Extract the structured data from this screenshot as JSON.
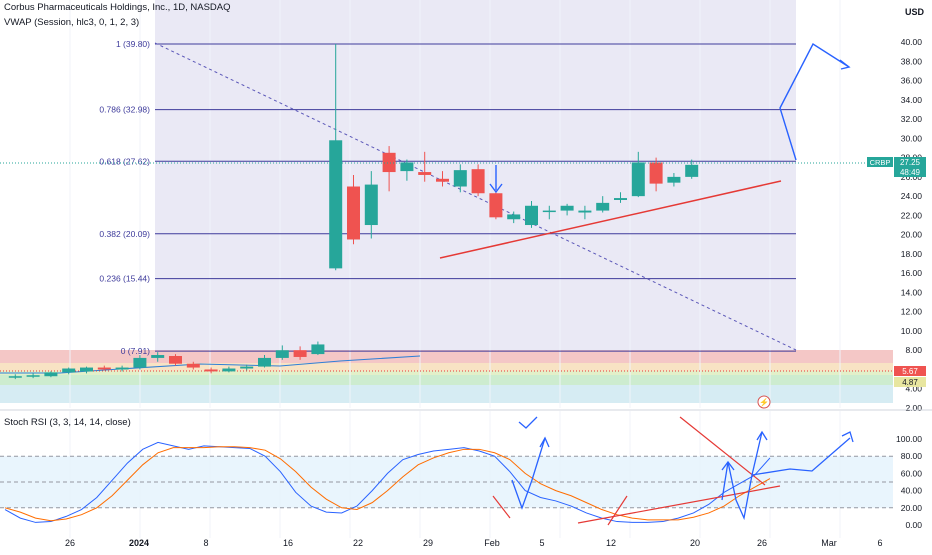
{
  "header": {
    "title_line": "Corbus Pharmaceuticals Holdings, Inc., 1D, NASDAQ",
    "vwap_line": "VWAP (Session, hlc3, 0, 1, 2, 3)",
    "currency": "USD"
  },
  "rsi_panel": {
    "title": "Stoch RSI (3, 3, 14, 14, close)",
    "yticks": [
      "100.00",
      "80.00",
      "60.00",
      "40.00",
      "20.00",
      "0.00"
    ]
  },
  "price_axis": {
    "ticks": [
      "40.00",
      "38.00",
      "36.00",
      "34.00",
      "32.00",
      "30.00",
      "28.00",
      "26.00",
      "24.00",
      "22.00",
      "20.00",
      "18.00",
      "16.00",
      "14.00",
      "12.00",
      "10.00",
      "8.00",
      "6.00",
      "4.00",
      "2.00"
    ]
  },
  "time_axis": {
    "labels": [
      "26",
      "2024",
      "8",
      "16",
      "22",
      "29",
      "Feb",
      "5",
      "12",
      "20",
      "26",
      "Mar",
      "6"
    ]
  },
  "badges": {
    "ticker": "CRBP",
    "price": "27.25",
    "countdown": "48:49",
    "vwap_value": "5.67",
    "band_value": "4.87"
  },
  "colors": {
    "up": "#26a69a",
    "down": "#ef5350",
    "fib_line": "#3e3b9b",
    "fib_fill": "#e3e1f1",
    "projection": "#2962ff",
    "trendline": "#e53935",
    "k_line": "#2962ff",
    "d_line": "#ff6d00"
  },
  "chart_data": [
    {
      "type": "candlestick",
      "title": "Corbus Pharmaceuticals Holdings, Inc., 1D, NASDAQ",
      "ylabel": "USD",
      "ylim": [
        2,
        41
      ],
      "x_labels": [
        "26",
        "2024",
        "8",
        "16",
        "22",
        "29",
        "Feb",
        "5",
        "12",
        "20",
        "26",
        "Mar",
        "6"
      ],
      "candles": [
        {
          "o": 5.2,
          "h": 5.5,
          "l": 5.0,
          "c": 5.3
        },
        {
          "o": 5.3,
          "h": 5.6,
          "l": 5.1,
          "c": 5.4
        },
        {
          "o": 5.3,
          "h": 5.8,
          "l": 5.2,
          "c": 5.7
        },
        {
          "o": 5.7,
          "h": 6.2,
          "l": 5.5,
          "c": 6.1
        },
        {
          "o": 5.8,
          "h": 6.3,
          "l": 5.6,
          "c": 6.2
        },
        {
          "o": 6.2,
          "h": 6.4,
          "l": 5.9,
          "c": 6.0
        },
        {
          "o": 6.0,
          "h": 6.4,
          "l": 5.8,
          "c": 6.2
        },
        {
          "o": 6.2,
          "h": 7.5,
          "l": 6.0,
          "c": 7.2
        },
        {
          "o": 7.2,
          "h": 7.8,
          "l": 6.8,
          "c": 7.5
        },
        {
          "o": 7.4,
          "h": 7.6,
          "l": 6.4,
          "c": 6.6
        },
        {
          "o": 6.6,
          "h": 6.8,
          "l": 6.0,
          "c": 6.2
        },
        {
          "o": 6.0,
          "h": 6.2,
          "l": 5.6,
          "c": 5.8
        },
        {
          "o": 5.8,
          "h": 6.3,
          "l": 5.7,
          "c": 6.1
        },
        {
          "o": 6.1,
          "h": 6.5,
          "l": 5.9,
          "c": 6.3
        },
        {
          "o": 6.3,
          "h": 7.5,
          "l": 6.2,
          "c": 7.2
        },
        {
          "o": 7.2,
          "h": 8.5,
          "l": 7.0,
          "c": 8.0
        },
        {
          "o": 8.0,
          "h": 8.4,
          "l": 7.0,
          "c": 7.3
        },
        {
          "o": 7.6,
          "h": 8.9,
          "l": 7.5,
          "c": 8.6
        },
        {
          "o": 16.5,
          "h": 39.8,
          "l": 16.3,
          "c": 29.8
        },
        {
          "o": 25.0,
          "h": 26.2,
          "l": 19.0,
          "c": 19.5
        },
        {
          "o": 21.0,
          "h": 26.6,
          "l": 19.6,
          "c": 25.2
        },
        {
          "o": 28.5,
          "h": 29.2,
          "l": 24.5,
          "c": 26.5
        },
        {
          "o": 26.6,
          "h": 27.8,
          "l": 25.6,
          "c": 27.5
        },
        {
          "o": 26.5,
          "h": 28.6,
          "l": 25.5,
          "c": 26.2
        },
        {
          "o": 25.8,
          "h": 26.6,
          "l": 25.0,
          "c": 25.5
        },
        {
          "o": 25.0,
          "h": 27.3,
          "l": 24.4,
          "c": 26.7
        },
        {
          "o": 26.8,
          "h": 27.3,
          "l": 24.0,
          "c": 24.3
        },
        {
          "o": 24.3,
          "h": 24.6,
          "l": 21.6,
          "c": 21.8
        },
        {
          "o": 21.6,
          "h": 22.4,
          "l": 21.2,
          "c": 22.1
        },
        {
          "o": 21.0,
          "h": 23.5,
          "l": 20.7,
          "c": 23.0
        },
        {
          "o": 22.5,
          "h": 23.0,
          "l": 21.6,
          "c": 22.5
        },
        {
          "o": 22.5,
          "h": 23.2,
          "l": 22.0,
          "c": 23.0
        },
        {
          "o": 22.3,
          "h": 23.0,
          "l": 21.6,
          "c": 22.5
        },
        {
          "o": 22.5,
          "h": 24.0,
          "l": 22.3,
          "c": 23.3
        },
        {
          "o": 23.6,
          "h": 24.4,
          "l": 23.3,
          "c": 23.8
        },
        {
          "o": 24.0,
          "h": 28.6,
          "l": 23.9,
          "c": 27.5
        },
        {
          "o": 27.5,
          "h": 28.0,
          "l": 24.5,
          "c": 25.3
        },
        {
          "o": 25.4,
          "h": 26.4,
          "l": 25.0,
          "c": 26.0
        },
        {
          "o": 26.0,
          "h": 27.8,
          "l": 25.8,
          "c": 27.25
        }
      ],
      "fib_levels": [
        {
          "ratio": "1",
          "price": 39.8,
          "label": "1 (39.80)"
        },
        {
          "ratio": "0.786",
          "price": 32.98,
          "label": "0.786 (32.98)"
        },
        {
          "ratio": "0.618",
          "price": 27.62,
          "label": "0.618 (27.62)"
        },
        {
          "ratio": "0.382",
          "price": 20.09,
          "label": "0.382 (20.09)"
        },
        {
          "ratio": "0.236",
          "price": 15.44,
          "label": "0.236 (15.44)"
        },
        {
          "ratio": "0",
          "price": 7.91,
          "label": "0 (7.91)"
        }
      ],
      "last_price": 27.25,
      "vwap": 5.67,
      "band": 4.87
    },
    {
      "type": "line",
      "title": "Stoch RSI (3, 3, 14, 14, close)",
      "ylim": [
        -5,
        105
      ],
      "bands": [
        20,
        50,
        80
      ],
      "series": [
        {
          "values": [
            18,
            8,
            3,
            4,
            10,
            18,
            32,
            52,
            72,
            88,
            96,
            92,
            88,
            92,
            91,
            90,
            89,
            80,
            62,
            38,
            22,
            15,
            14,
            22,
            40,
            60,
            76,
            82,
            86,
            88,
            90,
            86,
            80,
            62,
            40,
            32,
            28,
            22,
            14,
            8,
            4,
            3,
            3,
            4,
            8,
            14,
            24,
            38,
            48,
            58,
            78
          ]
        },
        {
          "values": [
            20,
            15,
            8,
            5,
            7,
            12,
            20,
            34,
            52,
            70,
            84,
            90,
            90,
            90,
            91,
            91,
            90,
            87,
            77,
            62,
            44,
            30,
            20,
            18,
            26,
            40,
            56,
            70,
            78,
            84,
            88,
            88,
            84,
            76,
            60,
            48,
            40,
            34,
            26,
            18,
            12,
            8,
            6,
            6,
            6,
            9,
            14,
            22,
            34,
            44,
            54
          ]
        }
      ]
    }
  ]
}
